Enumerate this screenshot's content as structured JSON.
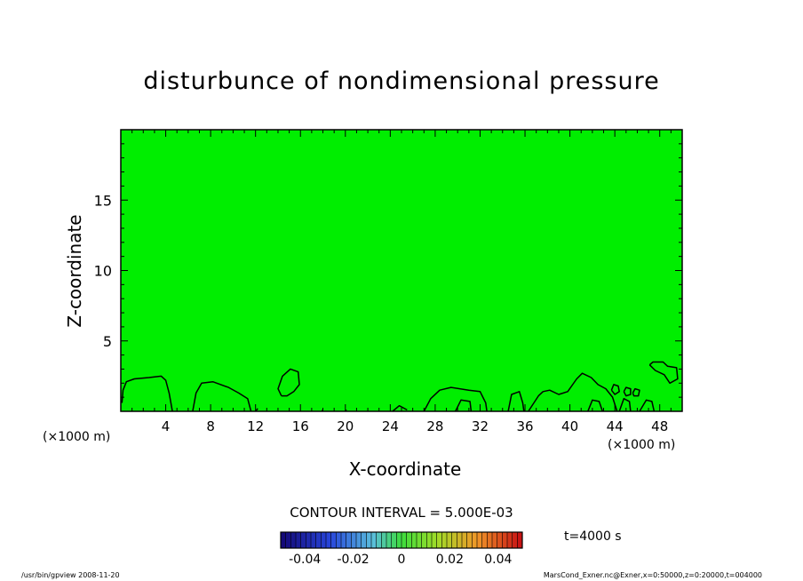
{
  "chart_data": {
    "type": "contour",
    "title": "disturbunce of nondimensional pressure",
    "xlabel": "X-coordinate",
    "ylabel": "Z-coordinate",
    "x_unit_label": "(×1000 m)",
    "xlim": [
      0,
      50
    ],
    "ylim": [
      0,
      20
    ],
    "x_ticks": [
      4,
      8,
      12,
      16,
      20,
      24,
      28,
      32,
      36,
      40,
      44,
      48
    ],
    "y_ticks": [
      5,
      10,
      15
    ],
    "fill_color": "#00ee00",
    "contour_interval_text": "CONTOUR INTERVAL = 5.000E-03",
    "colorbar": {
      "ticks": [
        "-0.04",
        "-0.02",
        "0",
        "0.02",
        "0.04"
      ],
      "tick_values": [
        -0.04,
        -0.02,
        0,
        0.02,
        0.04
      ],
      "range": [
        -0.05,
        0.05
      ]
    },
    "contours": [
      [
        [
          0.1,
          0.6
        ],
        [
          0.2,
          1.5
        ],
        [
          0.5,
          2.1
        ],
        [
          1.2,
          2.3
        ],
        [
          2.5,
          2.4
        ],
        [
          3.6,
          2.5
        ],
        [
          4.0,
          2.2
        ],
        [
          4.3,
          1.3
        ],
        [
          4.6,
          0.0
        ]
      ],
      [
        [
          6.4,
          0.0
        ],
        [
          6.7,
          1.3
        ],
        [
          7.2,
          2.0
        ],
        [
          8.2,
          2.1
        ],
        [
          9.6,
          1.7
        ],
        [
          10.5,
          1.3
        ],
        [
          11.3,
          0.9
        ],
        [
          11.6,
          0.0
        ]
      ],
      [
        [
          12.0,
          0.0
        ],
        [
          12.2,
          0.2
        ]
      ],
      [
        [
          14.3,
          1.1
        ],
        [
          14.0,
          1.6
        ],
        [
          14.4,
          2.5
        ],
        [
          15.1,
          3.0
        ],
        [
          15.8,
          2.8
        ],
        [
          15.9,
          1.9
        ],
        [
          15.4,
          1.4
        ],
        [
          14.8,
          1.1
        ],
        [
          14.3,
          1.1
        ]
      ],
      [
        [
          17.9,
          0.0
        ],
        [
          18.0,
          0.1
        ]
      ],
      [
        [
          20.0,
          0.0
        ],
        [
          20.1,
          0.1
        ]
      ],
      [
        [
          24.2,
          0.0
        ],
        [
          24.8,
          0.4
        ],
        [
          25.5,
          0.1
        ]
      ],
      [
        [
          27.0,
          0.0
        ],
        [
          27.6,
          0.9
        ],
        [
          28.4,
          1.5
        ],
        [
          29.4,
          1.7
        ],
        [
          31.0,
          1.5
        ],
        [
          32.0,
          1.4
        ],
        [
          32.5,
          0.6
        ],
        [
          32.6,
          0.0
        ]
      ],
      [
        [
          29.8,
          0.0
        ],
        [
          30.3,
          0.8
        ],
        [
          31.1,
          0.7
        ],
        [
          31.2,
          0.0
        ]
      ],
      [
        [
          34.5,
          0.0
        ],
        [
          34.8,
          1.2
        ],
        [
          35.5,
          1.4
        ],
        [
          35.8,
          0.6
        ],
        [
          35.9,
          0.0
        ]
      ],
      [
        [
          36.3,
          0.0
        ],
        [
          37.2,
          1.1
        ],
        [
          37.6,
          1.4
        ],
        [
          38.2,
          1.5
        ],
        [
          39.0,
          1.2
        ],
        [
          39.8,
          1.4
        ],
        [
          40.6,
          2.3
        ],
        [
          41.1,
          2.7
        ],
        [
          41.9,
          2.4
        ],
        [
          42.5,
          1.9
        ],
        [
          43.2,
          1.6
        ],
        [
          43.8,
          1.0
        ],
        [
          44.2,
          0.0
        ]
      ],
      [
        [
          41.6,
          0.0
        ],
        [
          42.0,
          0.8
        ],
        [
          42.6,
          0.7
        ],
        [
          42.9,
          0.0
        ]
      ],
      [
        [
          44.4,
          0.0
        ],
        [
          44.8,
          0.9
        ],
        [
          45.3,
          0.7
        ],
        [
          45.4,
          0.0
        ]
      ],
      [
        [
          46.2,
          0.0
        ],
        [
          46.8,
          0.8
        ],
        [
          47.3,
          0.7
        ],
        [
          47.5,
          0.0
        ]
      ],
      [
        [
          43.7,
          1.5
        ],
        [
          43.9,
          1.9
        ],
        [
          44.3,
          1.8
        ],
        [
          44.4,
          1.4
        ],
        [
          44.0,
          1.2
        ],
        [
          43.7,
          1.5
        ]
      ],
      [
        [
          44.8,
          1.4
        ],
        [
          45.0,
          1.7
        ],
        [
          45.4,
          1.6
        ],
        [
          45.4,
          1.2
        ],
        [
          45.0,
          1.1
        ],
        [
          44.8,
          1.4
        ]
      ],
      [
        [
          45.6,
          1.3
        ],
        [
          45.8,
          1.6
        ],
        [
          46.2,
          1.5
        ],
        [
          46.1,
          1.1
        ],
        [
          45.7,
          1.1
        ],
        [
          45.6,
          1.3
        ]
      ],
      [
        [
          47.1,
          3.3
        ],
        [
          47.4,
          3.5
        ],
        [
          48.3,
          3.5
        ],
        [
          48.7,
          3.2
        ],
        [
          49.5,
          3.1
        ],
        [
          49.6,
          2.3
        ],
        [
          48.9,
          2.0
        ],
        [
          48.4,
          2.6
        ],
        [
          47.6,
          2.9
        ],
        [
          47.1,
          3.3
        ]
      ]
    ]
  },
  "time_label": "t=4000 s",
  "footer_left": "/usr/bin/gpview 2008-11-20",
  "footer_right": "MarsCond_Exner.nc@Exner,x=0:50000,z=0:20000,t=004000"
}
